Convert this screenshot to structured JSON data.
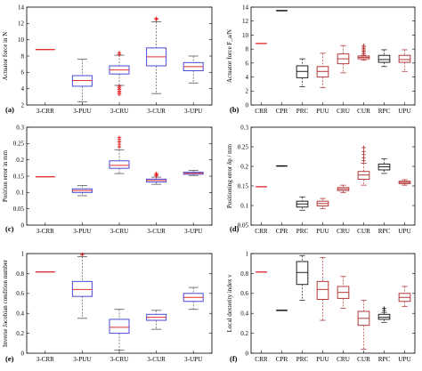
{
  "figure": {
    "colors": {
      "box_blue": "#4a4ad8",
      "median_red": "#e03030",
      "outlier_red": "#e01010",
      "box_darkred": "#b53a3a",
      "box_black": "#222222",
      "whisker_gray": "#555555"
    }
  },
  "chart_data": [
    {
      "id": "a",
      "panel_label": "(a)",
      "type": "box",
      "ylabel": "Actuator force in N",
      "ylim": [
        2,
        14
      ],
      "yticks": [
        "2",
        "4",
        "6",
        "8",
        "10",
        "12",
        "14"
      ],
      "categories": [
        "3-CRR",
        "3-PUU",
        "3-CRU",
        "3-CUR",
        "3-UPU"
      ],
      "box_style": "matlab-blue",
      "boxes": [
        {
          "name": "3-CRR",
          "whislo": 8.8,
          "q1": 8.8,
          "med": 8.8,
          "q3": 8.8,
          "whishi": 8.8,
          "fliers": []
        },
        {
          "name": "3-PUU",
          "whislo": 2.4,
          "q1": 4.3,
          "med": 5.0,
          "q3": 5.6,
          "whishi": 7.6,
          "fliers": []
        },
        {
          "name": "3-CRU",
          "whislo": 4.4,
          "q1": 5.8,
          "med": 6.3,
          "q3": 6.8,
          "whishi": 8.1,
          "fliers": [
            4.3,
            4.1,
            3.9,
            3.7,
            3.5,
            3.3,
            8.2,
            8.4
          ]
        },
        {
          "name": "3-CUR",
          "whislo": 3.4,
          "q1": 6.8,
          "med": 7.9,
          "q3": 9.0,
          "whishi": 12.2,
          "fliers": [
            12.5,
            12.6
          ]
        },
        {
          "name": "3-UPU",
          "whislo": 4.7,
          "q1": 6.2,
          "med": 6.7,
          "q3": 7.2,
          "whishi": 8.0,
          "fliers": []
        }
      ]
    },
    {
      "id": "b",
      "panel_label": "(b)",
      "type": "box",
      "ylabel": "Actuator force F_a/N",
      "ylim": [
        0,
        14
      ],
      "yticks": [
        "0",
        "2",
        "4",
        "6",
        "8",
        "10",
        "12",
        "14"
      ],
      "categories": [
        "CRR",
        "CPR",
        "PRC",
        "PUU",
        "CRU",
        "CUR",
        "RPC",
        "UPU"
      ],
      "box_style": "mixed",
      "boxes": [
        {
          "name": "CRR",
          "whislo": 8.8,
          "q1": 8.8,
          "med": 8.8,
          "q3": 8.8,
          "whishi": 8.8,
          "fliers": [],
          "color": "#e03030"
        },
        {
          "name": "CPR",
          "whislo": 13.5,
          "q1": 13.5,
          "med": 13.5,
          "q3": 13.5,
          "whishi": 13.5,
          "fliers": [],
          "color": "#000000"
        },
        {
          "name": "PRC",
          "whislo": 2.6,
          "q1": 3.9,
          "med": 4.8,
          "q3": 5.6,
          "whishi": 6.6,
          "fliers": [],
          "color": "#222222"
        },
        {
          "name": "PUU",
          "whislo": 2.5,
          "q1": 4.0,
          "med": 4.8,
          "q3": 5.5,
          "whishi": 7.4,
          "fliers": [],
          "color": "#b53a3a"
        },
        {
          "name": "CRU",
          "whislo": 4.6,
          "q1": 5.9,
          "med": 6.6,
          "q3": 7.3,
          "whishi": 8.5,
          "fliers": [],
          "color": "#b53a3a"
        },
        {
          "name": "CUR",
          "whislo": 6.4,
          "q1": 6.6,
          "med": 6.8,
          "q3": 7.0,
          "whishi": 7.1,
          "fliers": [
            7.3,
            7.5,
            7.7,
            7.9,
            8.1,
            8.3,
            8.5
          ],
          "color": "#b53a3a"
        },
        {
          "name": "RPC",
          "whislo": 5.5,
          "q1": 6.1,
          "med": 6.5,
          "q3": 7.1,
          "whishi": 7.9,
          "fliers": [],
          "color": "#222222"
        },
        {
          "name": "UPU",
          "whislo": 4.8,
          "q1": 6.1,
          "med": 6.5,
          "q3": 7.1,
          "whishi": 7.9,
          "fliers": [],
          "color": "#b53a3a"
        }
      ]
    },
    {
      "id": "c",
      "panel_label": "(c)",
      "type": "box",
      "ylabel": "Position error in mm",
      "ylim": [
        0,
        0.3
      ],
      "yticks": [
        "0",
        "0.05",
        "0.1",
        "0.15",
        "0.2",
        "0.25",
        "0.3"
      ],
      "categories": [
        "3-CRR",
        "3-PUU",
        "3-CRU",
        "3-CUR",
        "3-UPU"
      ],
      "box_style": "matlab-blue",
      "boxes": [
        {
          "name": "3-CRR",
          "whislo": 0.148,
          "q1": 0.148,
          "med": 0.148,
          "q3": 0.148,
          "whishi": 0.148,
          "fliers": []
        },
        {
          "name": "3-PUU",
          "whislo": 0.09,
          "q1": 0.1,
          "med": 0.106,
          "q3": 0.111,
          "whishi": 0.121,
          "fliers": []
        },
        {
          "name": "3-CRU",
          "whislo": 0.158,
          "q1": 0.174,
          "med": 0.183,
          "q3": 0.197,
          "whishi": 0.231,
          "fliers": [
            0.24,
            0.248,
            0.255,
            0.262,
            0.268
          ]
        },
        {
          "name": "3-CUR",
          "whislo": 0.125,
          "q1": 0.132,
          "med": 0.137,
          "q3": 0.141,
          "whishi": 0.147,
          "fliers": [
            0.151,
            0.155,
            0.158
          ]
        },
        {
          "name": "3-UPU",
          "whislo": 0.152,
          "q1": 0.156,
          "med": 0.159,
          "q3": 0.162,
          "whishi": 0.168,
          "fliers": []
        }
      ]
    },
    {
      "id": "d",
      "panel_label": "(d)",
      "type": "box",
      "ylabel": "Positioning error δp / mm",
      "ylim": [
        0.05,
        0.3
      ],
      "yticks": [
        "0.05",
        "0.1",
        "0.15",
        "0.2",
        "0.25",
        "0.3"
      ],
      "categories": [
        "CRR",
        "CPR",
        "PRC",
        "PUU",
        "CRU",
        "CUR",
        "RPC",
        "UPU"
      ],
      "box_style": "mixed",
      "boxes": [
        {
          "name": "CRR",
          "whislo": 0.148,
          "q1": 0.148,
          "med": 0.148,
          "q3": 0.148,
          "whishi": 0.148,
          "fliers": [],
          "color": "#e03030"
        },
        {
          "name": "CPR",
          "whislo": 0.201,
          "q1": 0.201,
          "med": 0.201,
          "q3": 0.201,
          "whishi": 0.201,
          "fliers": [],
          "color": "#000000"
        },
        {
          "name": "PRC",
          "whislo": 0.088,
          "q1": 0.096,
          "med": 0.104,
          "q3": 0.111,
          "whishi": 0.122,
          "fliers": [],
          "color": "#222222"
        },
        {
          "name": "PUU",
          "whislo": 0.092,
          "q1": 0.099,
          "med": 0.105,
          "q3": 0.111,
          "whishi": 0.118,
          "fliers": [],
          "color": "#b53a3a"
        },
        {
          "name": "CRU",
          "whislo": 0.133,
          "q1": 0.138,
          "med": 0.142,
          "q3": 0.146,
          "whishi": 0.152,
          "fliers": [],
          "color": "#b53a3a"
        },
        {
          "name": "CUR",
          "whislo": 0.152,
          "q1": 0.167,
          "med": 0.178,
          "q3": 0.187,
          "whishi": 0.208,
          "fliers": [
            0.215,
            0.222,
            0.23,
            0.238,
            0.248
          ],
          "color": "#b53a3a"
        },
        {
          "name": "RPC",
          "whislo": 0.182,
          "q1": 0.191,
          "med": 0.199,
          "q3": 0.206,
          "whishi": 0.219,
          "fliers": [],
          "color": "#222222"
        },
        {
          "name": "UPU",
          "whislo": 0.152,
          "q1": 0.156,
          "med": 0.159,
          "q3": 0.162,
          "whishi": 0.166,
          "fliers": [],
          "color": "#b53a3a"
        }
      ]
    },
    {
      "id": "e",
      "panel_label": "(e)",
      "type": "box",
      "ylabel": "Inverse Jacobian condition number",
      "ylim": [
        0,
        1
      ],
      "yticks": [
        "0",
        "0.2",
        "0.4",
        "0.6",
        "0.8",
        "1"
      ],
      "categories": [
        "3-CRR",
        "3-PUU",
        "3-CRU",
        "3-CUR",
        "3-UPU"
      ],
      "box_style": "matlab-blue",
      "boxes": [
        {
          "name": "3-CRR",
          "whislo": 0.815,
          "q1": 0.815,
          "med": 0.815,
          "q3": 0.815,
          "whishi": 0.815,
          "fliers": []
        },
        {
          "name": "3-PUU",
          "whislo": 0.35,
          "q1": 0.57,
          "med": 0.64,
          "q3": 0.72,
          "whishi": 0.97,
          "fliers": [
            0.99
          ]
        },
        {
          "name": "3-CRU",
          "whislo": 0.03,
          "q1": 0.2,
          "med": 0.26,
          "q3": 0.34,
          "whishi": 0.44,
          "fliers": []
        },
        {
          "name": "3-CUR",
          "whislo": 0.24,
          "q1": 0.33,
          "med": 0.36,
          "q3": 0.39,
          "whishi": 0.43,
          "fliers": []
        },
        {
          "name": "3-UPU",
          "whislo": 0.44,
          "q1": 0.52,
          "med": 0.56,
          "q3": 0.6,
          "whishi": 0.66,
          "fliers": []
        }
      ]
    },
    {
      "id": "f",
      "panel_label": "(f)",
      "type": "box",
      "ylabel": "Local dexterity index ν",
      "ylim": [
        0,
        1
      ],
      "yticks": [
        "0",
        "0.2",
        "0.4",
        "0.6",
        "0.8",
        "1"
      ],
      "categories": [
        "CRR",
        "CPR",
        "PRC",
        "PUU",
        "CRU",
        "CUR",
        "RPC",
        "UPU"
      ],
      "box_style": "mixed",
      "boxes": [
        {
          "name": "CRR",
          "whislo": 0.815,
          "q1": 0.815,
          "med": 0.815,
          "q3": 0.815,
          "whishi": 0.815,
          "fliers": [],
          "color": "#e03030"
        },
        {
          "name": "CPR",
          "whislo": 0.43,
          "q1": 0.43,
          "med": 0.43,
          "q3": 0.43,
          "whishi": 0.43,
          "fliers": [],
          "color": "#000000"
        },
        {
          "name": "PRC",
          "whislo": 0.53,
          "q1": 0.69,
          "med": 0.81,
          "q3": 0.92,
          "whishi": 0.98,
          "fliers": [],
          "color": "#222222"
        },
        {
          "name": "PUU",
          "whislo": 0.33,
          "q1": 0.54,
          "med": 0.64,
          "q3": 0.72,
          "whishi": 0.96,
          "fliers": [],
          "color": "#b53a3a"
        },
        {
          "name": "CRU",
          "whislo": 0.45,
          "q1": 0.55,
          "med": 0.61,
          "q3": 0.67,
          "whishi": 0.77,
          "fliers": [],
          "color": "#b53a3a"
        },
        {
          "name": "CUR",
          "whislo": 0.04,
          "q1": 0.28,
          "med": 0.35,
          "q3": 0.42,
          "whishi": 0.53,
          "fliers": [],
          "color": "#b53a3a"
        },
        {
          "name": "RPC",
          "whislo": 0.31,
          "q1": 0.34,
          "med": 0.36,
          "q3": 0.39,
          "whishi": 0.41,
          "fliers": [
            0.43,
            0.45
          ],
          "color": "#222222"
        },
        {
          "name": "UPU",
          "whislo": 0.47,
          "q1": 0.52,
          "med": 0.56,
          "q3": 0.6,
          "whishi": 0.67,
          "fliers": [],
          "color": "#b53a3a"
        }
      ]
    }
  ]
}
